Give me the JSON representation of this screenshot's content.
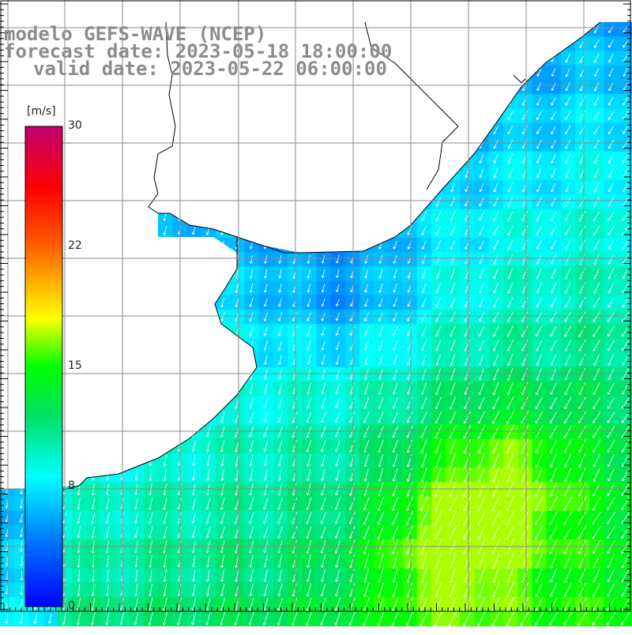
{
  "header": {
    "line1": "modelo GEFS-WAVE (NCEP)",
    "line2": "forecast date: 2023-05-18 18:00:00",
    "line3": "valid date: 2023-05-22 06:00:00"
  },
  "colorbar": {
    "unit": "[m/s]",
    "ticks": [
      {
        "value": 30,
        "label": "30"
      },
      {
        "value": 22,
        "label": "22"
      },
      {
        "value": 15,
        "label": "15"
      },
      {
        "value": 8,
        "label": "8"
      },
      {
        "value": 0,
        "label": "0"
      }
    ],
    "min": 0,
    "max": 30,
    "gradient_colors": [
      "#0000ff",
      "#0080ff",
      "#00e5ff",
      "#00ff00",
      "#ffff00",
      "#ff8000",
      "#ff0000",
      "#c00070"
    ]
  },
  "map": {
    "field": "wind speed",
    "colors": {
      "land": "#ffffff",
      "coastline": "#000000",
      "grid": "#888888",
      "arrows": "#ffffff"
    },
    "arrow_direction": "southward / south-southwest"
  }
}
